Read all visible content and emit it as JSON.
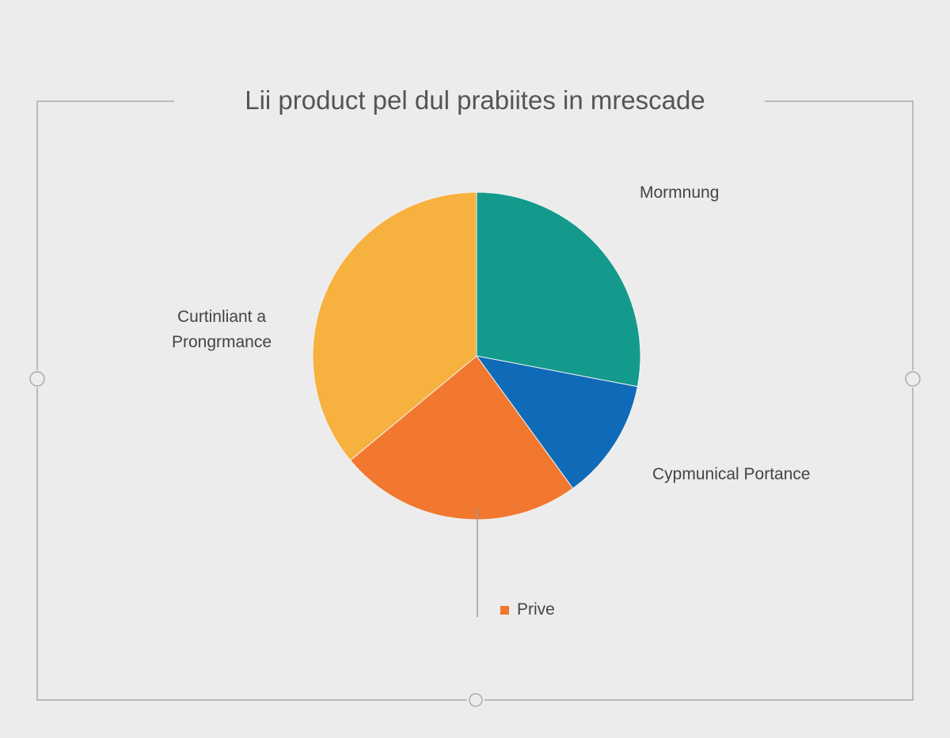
{
  "chart_data": {
    "type": "pie",
    "title": "Lii product pel dul prabiites in mrescade",
    "categories": [
      "Mormnung",
      "Cypmunical Portance",
      "Prive",
      "Curtinliant a Prongrmance"
    ],
    "values": [
      28,
      12,
      24,
      36
    ],
    "colors": [
      "#139a8c",
      "#0f6bb8",
      "#f2772f",
      "#f7b13e"
    ]
  }
}
